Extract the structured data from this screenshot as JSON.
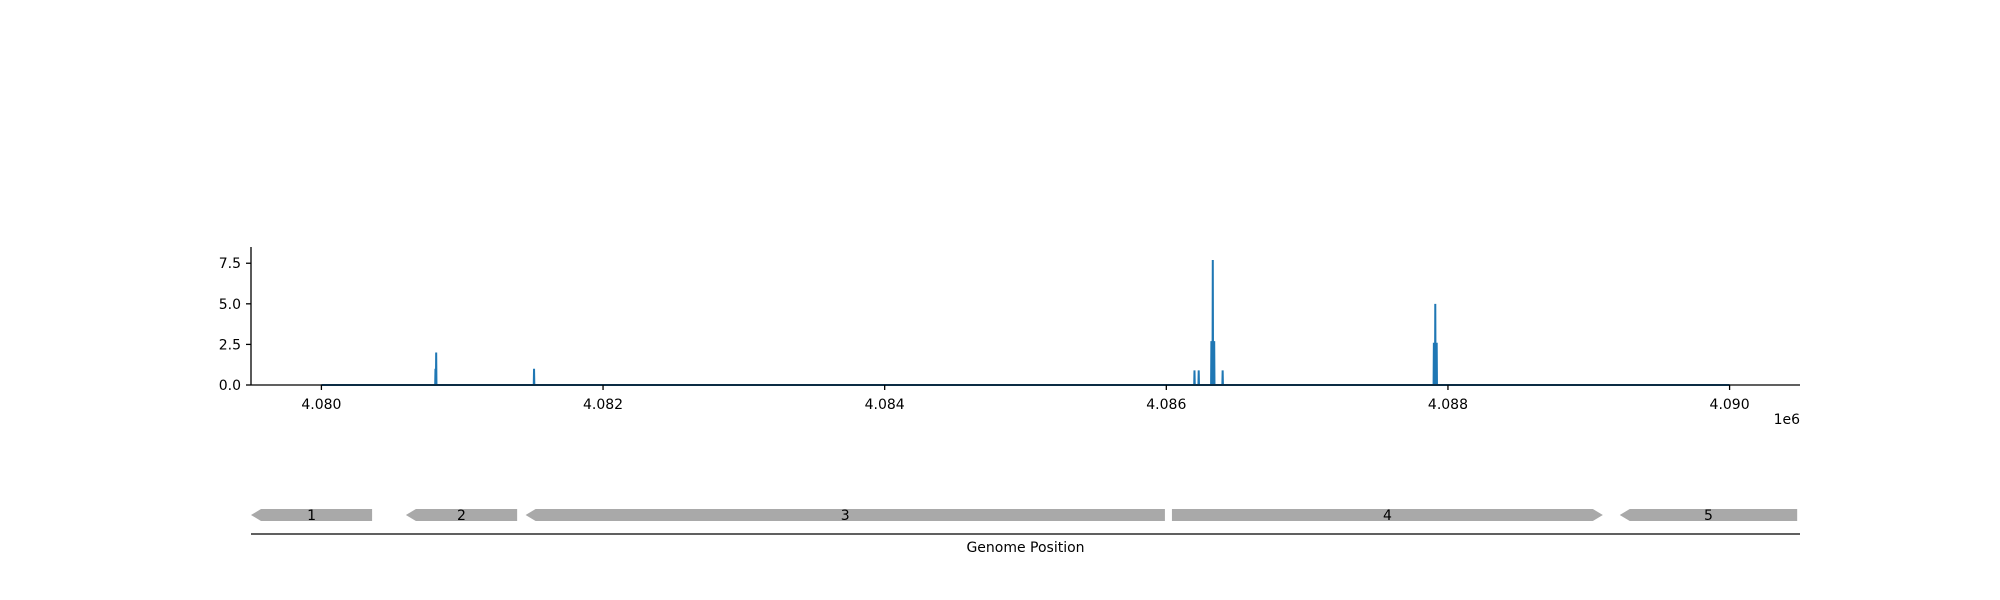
{
  "chart_data": [
    {
      "type": "line",
      "title": "",
      "xlabel": "",
      "ylabel": "",
      "x_offset_label": "1e6",
      "xlim": [
        4079500,
        4090500
      ],
      "ylim": [
        0,
        8.5
      ],
      "line_start": 4080000,
      "line_end": 4090000,
      "grid": false,
      "color": "#1f77b4",
      "x_ticks": [
        {
          "value": 4080000,
          "label": "4.080"
        },
        {
          "value": 4082000,
          "label": "4.082"
        },
        {
          "value": 4084000,
          "label": "4.084"
        },
        {
          "value": 4086000,
          "label": "4.086"
        },
        {
          "value": 4088000,
          "label": "4.088"
        },
        {
          "value": 4090000,
          "label": "4.090"
        }
      ],
      "y_ticks": [
        {
          "value": 0,
          "label": "0.0"
        },
        {
          "value": 2.5,
          "label": "2.5"
        },
        {
          "value": 5,
          "label": "5.0"
        },
        {
          "value": 7.5,
          "label": "7.5"
        }
      ],
      "peaks": [
        {
          "x": 4080810,
          "y": 1.0
        },
        {
          "x": 4080815,
          "y": 2.0
        },
        {
          "x": 4081510,
          "y": 1.0
        },
        {
          "x": 4086200,
          "y": 0.9
        },
        {
          "x": 4086230,
          "y": 0.9
        },
        {
          "x": 4086320,
          "y": 2.7
        },
        {
          "x": 4086330,
          "y": 7.7
        },
        {
          "x": 4086340,
          "y": 2.7
        },
        {
          "x": 4086400,
          "y": 0.9
        },
        {
          "x": 4087900,
          "y": 2.6
        },
        {
          "x": 4087910,
          "y": 5.0
        },
        {
          "x": 4087920,
          "y": 2.6
        }
      ]
    },
    {
      "type": "gene-track",
      "xlabel": "Genome Position",
      "color": "#a9a9a9",
      "genes": [
        {
          "label": "1",
          "start": 4079500,
          "end": 4080360,
          "strand": "-"
        },
        {
          "label": "2",
          "start": 4080600,
          "end": 4081390,
          "strand": "-"
        },
        {
          "label": "3",
          "start": 4081450,
          "end": 4085990,
          "strand": "-"
        },
        {
          "label": "4",
          "start": 4086040,
          "end": 4089100,
          "strand": "+"
        },
        {
          "label": "5",
          "start": 4089220,
          "end": 4090480,
          "strand": "-"
        }
      ]
    }
  ]
}
